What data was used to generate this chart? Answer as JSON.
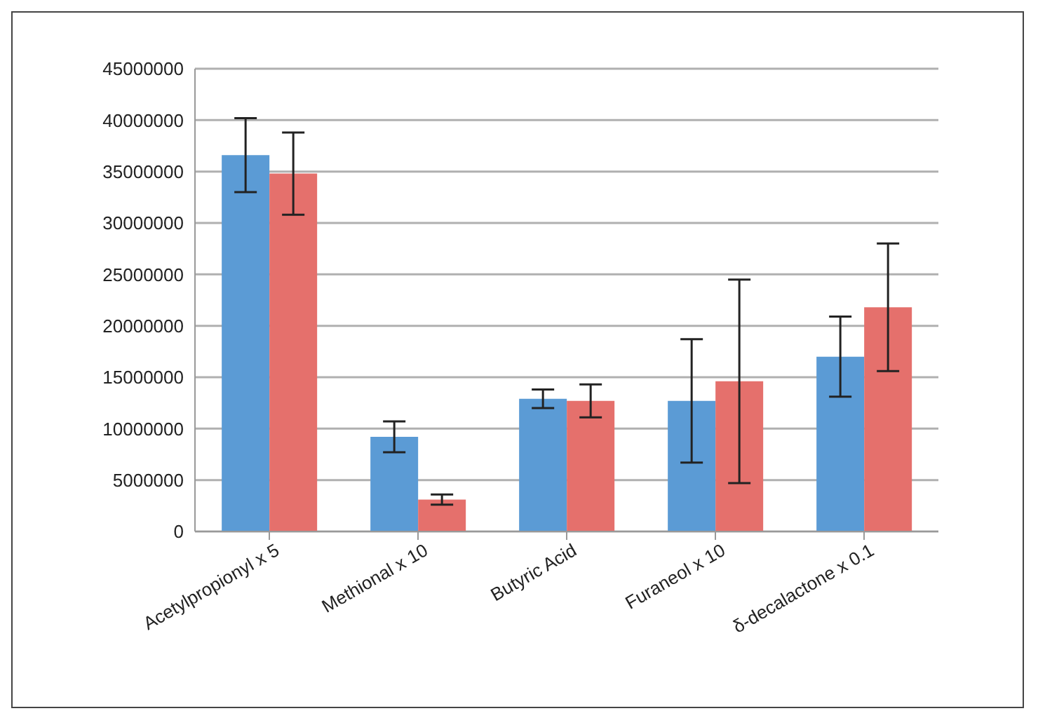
{
  "chart_data": {
    "type": "bar",
    "categories": [
      "Acetylpropionyl x 5",
      "Methional x 10",
      "Butyric Acid",
      "Furaneol  x 10",
      "δ-decalactone x 0.1"
    ],
    "series": [
      {
        "color": "#5b9bd5",
        "values": [
          36600000,
          9200000,
          12900000,
          12700000,
          17000000
        ],
        "errors": [
          3600000,
          1500000,
          900000,
          6000000,
          3900000
        ]
      },
      {
        "color": "#e5706c",
        "values": [
          34800000,
          3100000,
          12700000,
          14600000,
          21800000
        ],
        "errors": [
          4000000,
          500000,
          1600000,
          9900000,
          6200000
        ]
      }
    ],
    "ylim": [
      0,
      45000000
    ],
    "yticks": [
      0,
      5000000,
      10000000,
      15000000,
      20000000,
      25000000,
      30000000,
      35000000,
      40000000,
      45000000
    ],
    "grid": "y",
    "legend": false
  }
}
